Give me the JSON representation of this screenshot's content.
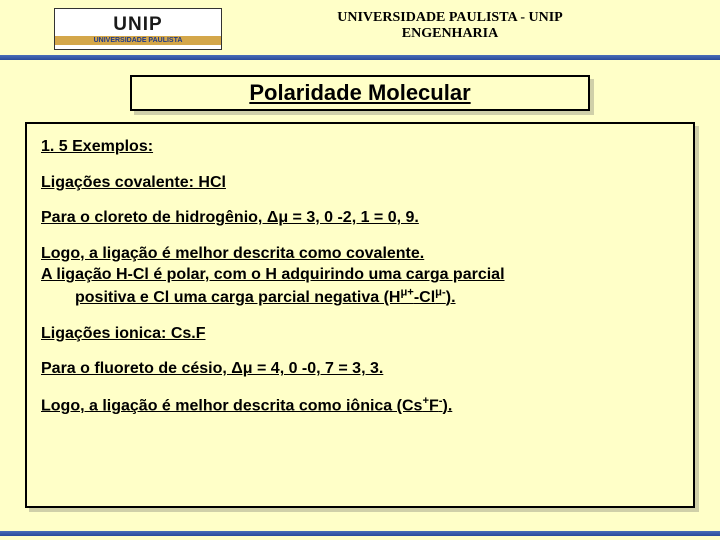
{
  "header": {
    "logo_top": "UNIP",
    "logo_bottom": "UNIVERSIDADE PAULISTA",
    "uni_line1": "UNIVERSIDADE PAULISTA - UNIP",
    "uni_line2": "ENGENHARIA"
  },
  "title": "Polaridade Molecular",
  "content": {
    "sec1": "1. 5 Exemplos:",
    "sub1": "Ligações covalente: HCl",
    "p1": "Para o cloreto de hidrogênio, Δμ = 3, 0 -2, 1 = 0, 9.",
    "p2a": "Logo, a ligação é melhor descrita como covalente.",
    "p2b": "A ligação H-Cl é polar, com o H adquirindo uma carga parcial",
    "p2c": "positiva e Cl uma carga parcial negativa (H",
    "p2d": "-Cl",
    "p2e": ").",
    "sub2": "Ligações ionica: Cs.F",
    "p3": "Para o fluoreto de césio, Δμ = 4, 0 -0, 7 = 3, 3.",
    "p4a": "Logo, a ligação é melhor descrita como iônica (Cs",
    "p4b": "F",
    "p4c": ").",
    "sup_mu_plus": "μ+",
    "sup_mu_minus": "μ-",
    "sup_plus": "+",
    "sup_minus": "-"
  }
}
